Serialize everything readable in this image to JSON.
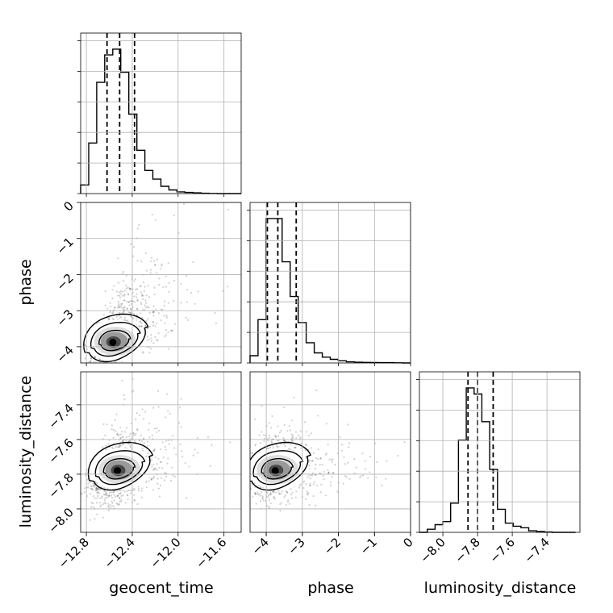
{
  "chart_data": {
    "type": "corner",
    "grid": true,
    "parameters": [
      "geocent_time",
      "phase",
      "luminosity_distance"
    ],
    "axis_labels": {
      "geocent_time": "geocent_time",
      "phase": "phase",
      "luminosity_distance": "luminosity_distance"
    },
    "ranges": {
      "geocent_time": [
        -12.85,
        -11.45
      ],
      "phase": [
        -4.45,
        0.0
      ],
      "luminosity_distance": [
        -8.135,
        -7.21
      ]
    },
    "ticks": {
      "geocent_time": {
        "values": [
          -12.8,
          -12.4,
          -12.0,
          -11.6
        ],
        "labels": [
          "−12.8",
          "−12.4",
          "−12.0",
          "−11.6"
        ]
      },
      "phase": {
        "values": [
          -4,
          -3,
          -2,
          -1,
          0
        ],
        "labels": [
          "−4",
          "−3",
          "−2",
          "−1",
          "0"
        ]
      },
      "luminosity_distance": {
        "values": [
          -8.0,
          -7.8,
          -7.6,
          -7.4
        ],
        "labels": [
          "−8.0",
          "−7.8",
          "−7.6",
          "−7.4"
        ]
      }
    },
    "quantiles": {
      "geocent_time": [
        -12.62,
        -12.51,
        -12.38
      ],
      "phase": [
        -3.97,
        -3.68,
        -3.17
      ],
      "luminosity_distance": [
        -7.855,
        -7.8,
        -7.71
      ]
    },
    "histograms": {
      "geocent_time": {
        "edges": [
          -12.85,
          -12.78,
          -12.71,
          -12.64,
          -12.57,
          -12.5,
          -12.43,
          -12.36,
          -12.29,
          -12.22,
          -12.15,
          -12.08,
          -12.01,
          -11.94,
          -11.87,
          -11.8,
          -11.73,
          -11.66,
          -11.59,
          -11.52,
          -11.45
        ],
        "counts": [
          0.06,
          0.35,
          0.77,
          0.96,
          1.0,
          0.84,
          0.55,
          0.3,
          0.16,
          0.1,
          0.05,
          0.025,
          0.012,
          0.008,
          0.005,
          0.002,
          0.001,
          0,
          0,
          0
        ]
      },
      "phase": {
        "edges": [
          -4.45,
          -4.2275,
          -4.005,
          -3.7825,
          -3.56,
          -3.3375,
          -3.115,
          -2.8925,
          -2.67,
          -2.4475,
          -2.225,
          -2.0025,
          -1.78,
          -1.5575,
          -1.335,
          -1.1125,
          -0.89,
          -0.6675,
          -0.445,
          -0.2225,
          0.0
        ],
        "counts": [
          0.05,
          0.3,
          1.0,
          1.0,
          0.7,
          0.46,
          0.28,
          0.14,
          0.07,
          0.04,
          0.025,
          0.015,
          0.008,
          0.005,
          0.004,
          0.003,
          0.002,
          0.002,
          0.001,
          0.0
        ]
      },
      "luminosity_distance": {
        "edges": [
          -8.135,
          -8.09,
          -8.045,
          -8.0,
          -7.955,
          -7.91,
          -7.865,
          -7.82,
          -7.775,
          -7.73,
          -7.685,
          -7.64,
          -7.595,
          -7.55,
          -7.505,
          -7.46,
          -7.415,
          -7.37,
          -7.325,
          -7.28,
          -7.235
        ],
        "counts": [
          0.0,
          0.02,
          0.05,
          0.07,
          0.19,
          0.6,
          0.94,
          0.9,
          0.72,
          0.41,
          0.15,
          0.06,
          0.04,
          0.03,
          0.01,
          0.005,
          0.002,
          0.0,
          0.0,
          0.0
        ]
      }
    },
    "pairs": [
      {
        "x": "geocent_time",
        "y": "phase",
        "mean": [
          -12.51,
          -3.72
        ],
        "sd": [
          0.12,
          0.45
        ],
        "rho": 0.55,
        "n_points": 900,
        "skew": [
          0.9,
          1.1
        ],
        "contour_levels": [
          0.39,
          0.86,
          0.99
        ],
        "peak": [
          -12.57,
          -3.88
        ]
      },
      {
        "x": "geocent_time",
        "y": "luminosity_distance",
        "mean": [
          -12.5,
          -7.79
        ],
        "sd": [
          0.13,
          0.09
        ],
        "rho": 0.45,
        "n_points": 900,
        "skew": [
          0.9,
          0.8
        ],
        "contour_levels": [
          0.39,
          0.86,
          0.99
        ],
        "peak": [
          -12.53,
          -7.78
        ]
      },
      {
        "x": "phase",
        "y": "luminosity_distance",
        "mean": [
          -3.65,
          -7.78
        ],
        "sd": [
          0.42,
          0.08
        ],
        "rho": 0.1,
        "n_points": 900,
        "skew": [
          1.1,
          0.5
        ],
        "contour_levels": [
          0.39,
          0.86,
          0.99
        ],
        "peak": [
          -3.75,
          -7.78
        ]
      }
    ]
  }
}
